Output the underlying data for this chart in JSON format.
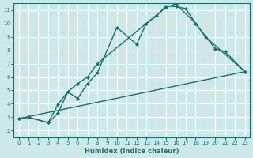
{
  "xlabel": "Humidex (Indice chaleur)",
  "bg_color": "#cce8e8",
  "line_color": "#1a7070",
  "grid_color": "#ffffff",
  "xlim": [
    -0.5,
    23.5
  ],
  "ylim": [
    1.5,
    11.5
  ],
  "xticks": [
    0,
    1,
    2,
    3,
    4,
    5,
    6,
    7,
    8,
    9,
    10,
    11,
    12,
    13,
    14,
    15,
    16,
    17,
    18,
    19,
    20,
    21,
    22,
    23
  ],
  "yticks": [
    2,
    3,
    4,
    5,
    6,
    7,
    8,
    9,
    10,
    11
  ],
  "line1_x": [
    0,
    1,
    3,
    4,
    5,
    6,
    7,
    8,
    10,
    12,
    13,
    14,
    15,
    16,
    17,
    18,
    20,
    21,
    23
  ],
  "line1_y": [
    2.9,
    3.0,
    2.6,
    3.3,
    4.9,
    4.4,
    5.5,
    6.3,
    9.7,
    8.45,
    10.0,
    10.55,
    11.3,
    11.25,
    11.1,
    10.0,
    8.1,
    7.9,
    6.4
  ],
  "line2_x": [
    0,
    1,
    3,
    4,
    5,
    6,
    7,
    8,
    15,
    16,
    18,
    19,
    23
  ],
  "line2_y": [
    2.9,
    3.0,
    2.6,
    3.95,
    4.9,
    5.5,
    6.0,
    7.0,
    11.2,
    11.45,
    10.0,
    9.0,
    6.4
  ],
  "line3_x": [
    0,
    23
  ],
  "line3_y": [
    2.9,
    6.4
  ]
}
